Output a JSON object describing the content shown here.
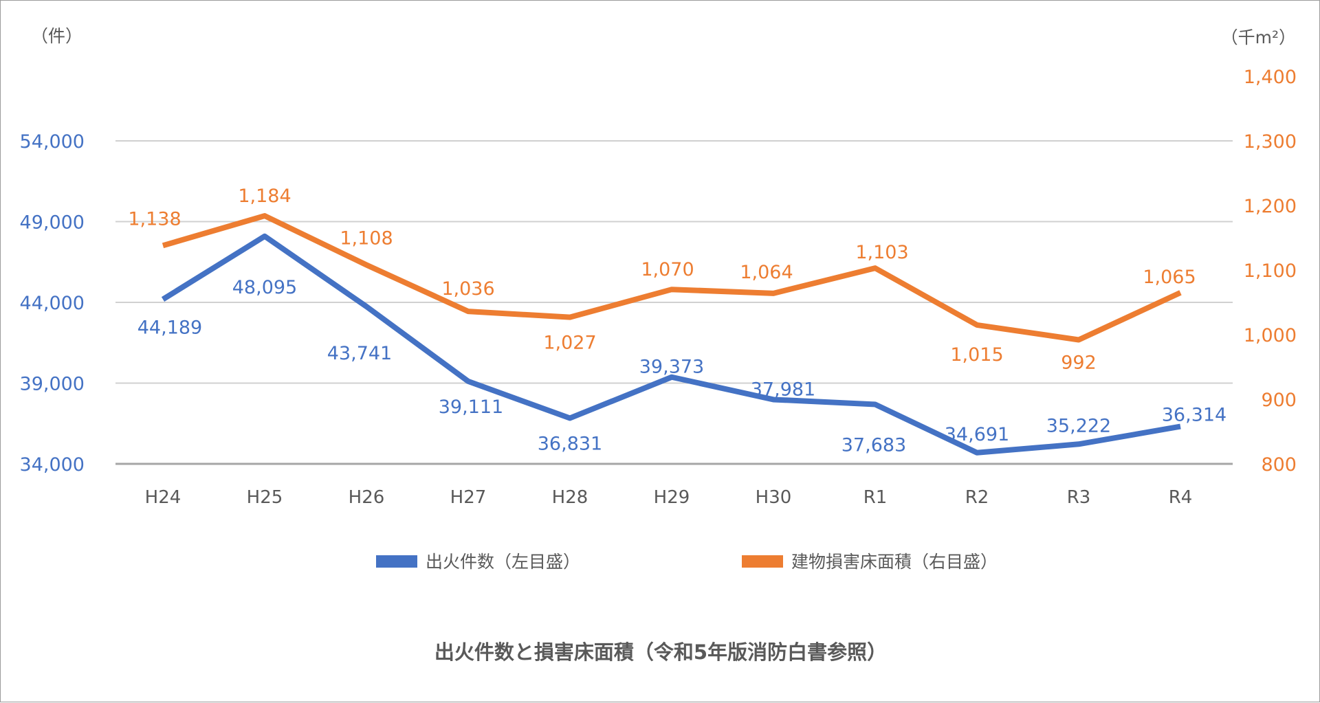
{
  "chart_data": {
    "type": "line",
    "title": "出火件数と損害床面積（令和5年版消防白書参照）",
    "categories": [
      "H24",
      "H25",
      "H26",
      "H27",
      "H28",
      "H29",
      "H30",
      "R1",
      "R2",
      "R3",
      "R4"
    ],
    "series": [
      {
        "name": "出火件数（左目盛）",
        "axis": "left",
        "color": "#4472c4",
        "values": [
          44189,
          48095,
          43741,
          39111,
          36831,
          39373,
          37981,
          37683,
          34691,
          35222,
          36314
        ],
        "labels": [
          "44,189",
          "48,095",
          "43,741",
          "39,111",
          "36,831",
          "39,373",
          "37,981",
          "37,683",
          "34,691",
          "35,222",
          "36,314"
        ]
      },
      {
        "name": "建物損害床面積（右目盛）",
        "axis": "right",
        "color": "#ed7d31",
        "values": [
          1138,
          1184,
          1108,
          1036,
          1027,
          1070,
          1064,
          1103,
          1015,
          992,
          1065
        ],
        "labels": [
          "1,138",
          "1,184",
          "1,108",
          "1,036",
          "1,027",
          "1,070",
          "1,064",
          "1,103",
          "1,015",
          "992",
          "1,065"
        ]
      }
    ],
    "left_axis": {
      "unit": "（件）",
      "ylim": [
        34000,
        54000
      ],
      "ticks": [
        34000,
        39000,
        44000,
        49000,
        54000
      ],
      "tick_labels": [
        "34,000",
        "39,000",
        "44,000",
        "49,000",
        "54,000"
      ]
    },
    "right_axis": {
      "unit": "（千m²）",
      "ylim": [
        800,
        1400
      ],
      "ticks": [
        800,
        900,
        1000,
        1100,
        1200,
        1300,
        1400
      ],
      "tick_labels": [
        "800",
        "900",
        "1,000",
        "1,100",
        "1,200",
        "1,300",
        "1,400"
      ]
    },
    "xlabel": "",
    "grid": true,
    "legend_position": "bottom"
  },
  "legend": {
    "items": [
      {
        "label": "出火件数（左目盛）",
        "color": "#4472c4"
      },
      {
        "label": "建物損害床面積（右目盛）",
        "color": "#ed7d31"
      }
    ]
  },
  "title": "出火件数と損害床面積（令和5年版消防白書参照）"
}
